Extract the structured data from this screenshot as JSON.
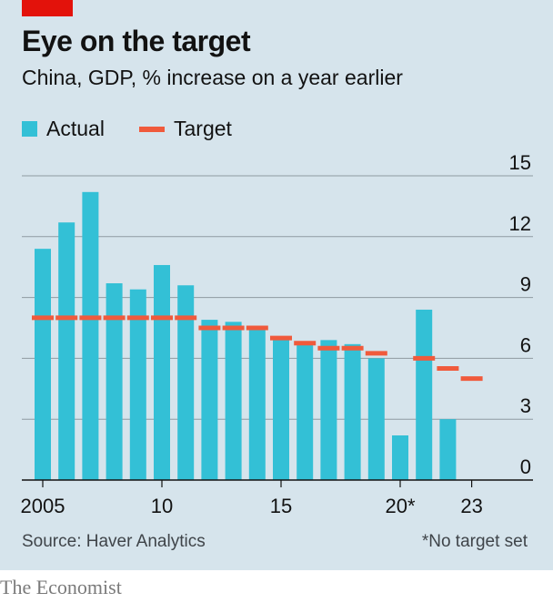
{
  "header": {
    "title": "Eye on the target",
    "subtitle": "China, GDP, % increase on a year earlier"
  },
  "legend": {
    "actual_label": "Actual",
    "target_label": "Target"
  },
  "colors": {
    "actual": "#33c0d6",
    "target": "#f05a3c",
    "background": "#d6e4ec",
    "brand_red": "#e3120b"
  },
  "footer": {
    "source": "Source: Haver Analytics",
    "footnote": "*No target set",
    "brand": "The Economist"
  },
  "chart_data": {
    "type": "bar",
    "title": "Eye on the target",
    "subtitle": "China, GDP, % increase on a year earlier",
    "xlabel": "",
    "ylabel": "",
    "ylim": [
      0,
      15
    ],
    "yticks": [
      0,
      3,
      6,
      9,
      12,
      15
    ],
    "grid": true,
    "y_axis_side": "right",
    "legend_position": "top-left",
    "categories": [
      "2005",
      "2006",
      "2007",
      "2008",
      "2009",
      "2010",
      "2011",
      "2012",
      "2013",
      "2014",
      "2015",
      "2016",
      "2017",
      "2018",
      "2019",
      "2020",
      "2021",
      "2022",
      "2023"
    ],
    "xtick_labels": [
      {
        "category": "2005",
        "label": "2005"
      },
      {
        "category": "2010",
        "label": "10"
      },
      {
        "category": "2015",
        "label": "15"
      },
      {
        "category": "2020",
        "label": "20*"
      },
      {
        "category": "2023",
        "label": "23"
      }
    ],
    "series": [
      {
        "name": "Actual",
        "type": "bar",
        "values": [
          11.4,
          12.7,
          14.2,
          9.7,
          9.4,
          10.6,
          9.6,
          7.9,
          7.8,
          7.4,
          6.9,
          6.7,
          6.9,
          6.7,
          6.0,
          2.2,
          8.4,
          3.0,
          null
        ]
      },
      {
        "name": "Target",
        "type": "marker",
        "values": [
          8.0,
          8.0,
          8.0,
          8.0,
          8.0,
          8.0,
          8.0,
          7.5,
          7.5,
          7.5,
          7.0,
          6.75,
          6.5,
          6.5,
          6.25,
          null,
          6.0,
          5.5,
          5.0
        ]
      }
    ]
  }
}
